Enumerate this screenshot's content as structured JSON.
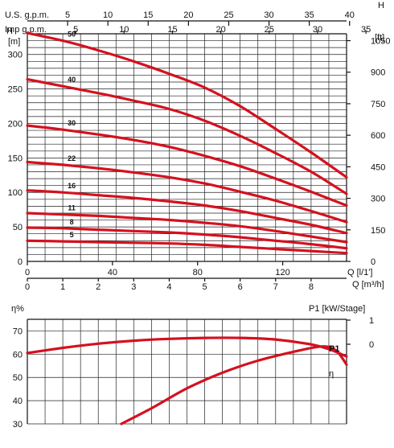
{
  "top_chart": {
    "type": "line",
    "axis_label_left": "H\n[m]",
    "axis_label_right": "H\n[ft]",
    "axis_label_top_us": "U.S. g.p.m.",
    "axis_label_top_imp": "Imp g.p.m.",
    "axis_label_q_ls": "Q [l/1']",
    "axis_label_q_m3": "Q [m³/h]",
    "h_m_ticks": [
      "0",
      "50",
      "100",
      "150",
      "200",
      "250",
      "300"
    ],
    "h_ft_ticks": [
      "0",
      "150",
      "300",
      "450",
      "600",
      "750",
      "900",
      "1050"
    ],
    "us_gpm_ticks": [
      "5",
      "10",
      "15",
      "20",
      "25",
      "30",
      "35",
      "40"
    ],
    "imp_gpm_ticks": [
      "5",
      "10",
      "15",
      "20",
      "25",
      "30",
      "35"
    ],
    "q_ls_ticks": [
      "0",
      "40",
      "80",
      "120"
    ],
    "q_m3_ticks": [
      "0",
      "1",
      "2",
      "3",
      "4",
      "5",
      "6",
      "7",
      "8"
    ]
  },
  "bottom_chart": {
    "type": "line",
    "axis_label_eta": "η%",
    "axis_label_p1": "P1 [kW/Stage]",
    "eta_ticks": [
      "30",
      "40",
      "50",
      "60",
      "70"
    ],
    "p1_ticks": [
      "1",
      "0"
    ],
    "label_p1": "P1",
    "label_eta": "η"
  },
  "chart_data": [
    {
      "type": "line",
      "title": "",
      "xlabel": "Q [m³/h]",
      "ylabel": "H [m]",
      "xlim": [
        0,
        9
      ],
      "ylim": [
        0,
        330
      ],
      "color": "#d4111f",
      "series": [
        {
          "name": "50",
          "x": [
            0,
            1,
            2,
            3,
            4,
            5,
            6,
            7,
            8,
            9
          ],
          "y": [
            331,
            320,
            306,
            290,
            272,
            252,
            225,
            192,
            158,
            122
          ]
        },
        {
          "name": "40",
          "x": [
            0,
            1,
            2,
            3,
            4,
            5,
            6,
            7,
            8,
            9
          ],
          "y": [
            264,
            254,
            244,
            233,
            221,
            204,
            182,
            157,
            130,
            98
          ]
        },
        {
          "name": "30",
          "x": [
            0,
            1,
            2,
            3,
            4,
            5,
            6,
            7,
            8,
            9
          ],
          "y": [
            197,
            191,
            184,
            176,
            166,
            153,
            138,
            120,
            101,
            81
          ]
        },
        {
          "name": "22",
          "x": [
            0,
            1,
            2,
            3,
            4,
            5,
            6,
            7,
            8,
            9
          ],
          "y": [
            144,
            140,
            135,
            129,
            122,
            113,
            101,
            88,
            73,
            57
          ]
        },
        {
          "name": "16",
          "x": [
            0,
            1,
            2,
            3,
            4,
            5,
            6,
            7,
            8,
            9
          ],
          "y": [
            103,
            100,
            96,
            92,
            87,
            81,
            73,
            63,
            53,
            41
          ]
        },
        {
          "name": "11",
          "x": [
            0,
            1,
            2,
            3,
            4,
            5,
            6,
            7,
            8,
            9
          ],
          "y": [
            70,
            68,
            66,
            63,
            60,
            56,
            51,
            44,
            36,
            28
          ]
        },
        {
          "name": "8",
          "x": [
            0,
            1,
            2,
            3,
            4,
            5,
            6,
            7,
            8,
            9
          ],
          "y": [
            49,
            48,
            46,
            44,
            42,
            39,
            35,
            30,
            25,
            19
          ]
        },
        {
          "name": "5",
          "x": [
            0,
            1,
            2,
            3,
            4,
            5,
            6,
            7,
            8,
            9
          ],
          "y": [
            30,
            29,
            28,
            27,
            26,
            24,
            21,
            18,
            15,
            12
          ]
        }
      ]
    },
    {
      "type": "line",
      "title": "",
      "xlabel": "",
      "ylabel": "η%",
      "xlim": [
        0,
        9
      ],
      "ylim": [
        30,
        75
      ],
      "color": "#d4111f",
      "series": [
        {
          "name": "P1",
          "x": [
            0,
            1,
            2,
            3,
            4,
            5,
            6,
            7,
            8,
            8.5,
            9
          ],
          "y": [
            60.5,
            62.7,
            64.5,
            65.8,
            66.6,
            67.0,
            67.0,
            66.3,
            64.2,
            62.2,
            59.0
          ]
        },
        {
          "name": "η",
          "x": [
            2.65,
            3.5,
            4.5,
            5.5,
            6.5,
            7.5,
            8.3,
            8.7,
            9
          ],
          "y": [
            30,
            36.7,
            45.3,
            52.0,
            57.2,
            61.0,
            63.3,
            61.6,
            55.5
          ]
        }
      ]
    }
  ]
}
